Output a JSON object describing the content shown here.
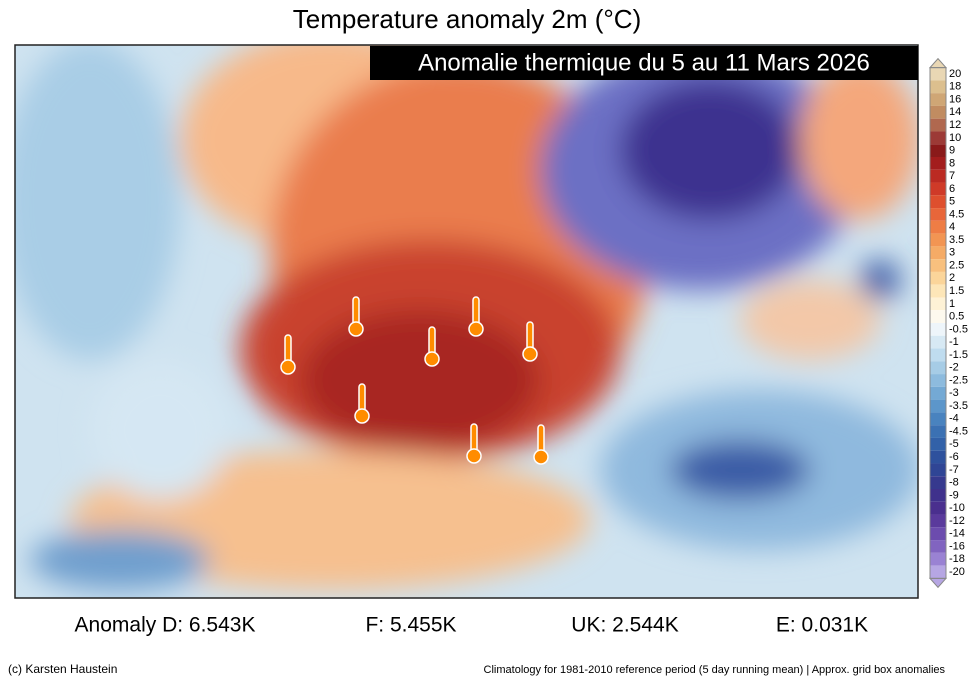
{
  "header": {
    "title": "Temperature anomaly 2m (°C)",
    "banner": "Anomalie thermique du 5 au 11 Mars 2026"
  },
  "colorbar": {
    "labels": [
      "20",
      "18",
      "16",
      "14",
      "12",
      "10",
      "9",
      "8",
      "7",
      "6",
      "5",
      "4.5",
      "4",
      "3.5",
      "3",
      "2.5",
      "2",
      "1.5",
      "1",
      "0.5",
      "-0.5",
      "-1",
      "-1.5",
      "-2",
      "-2.5",
      "-3",
      "-3.5",
      "-4",
      "-4.5",
      "-5",
      "-6",
      "-7",
      "-8",
      "-9",
      "-10",
      "-12",
      "-14",
      "-16",
      "-18",
      "-20"
    ],
    "colors": [
      "#e9d7b4",
      "#dcbf8e",
      "#cfa675",
      "#c18c61",
      "#b0684f",
      "#9c3a36",
      "#8a1a1a",
      "#a31d1d",
      "#bb2a22",
      "#cf3a28",
      "#de4f2e",
      "#e8663a",
      "#ee7d45",
      "#f29553",
      "#f5ab66",
      "#f8c07e",
      "#fbd59a",
      "#fde6b8",
      "#fef2d6",
      "#fdf9ee",
      "#eef5fa",
      "#d7e9f4",
      "#bfdcef",
      "#a6cce6",
      "#8dbbde",
      "#74a9d4",
      "#5c96ca",
      "#4983bf",
      "#3b71b3",
      "#3261a8",
      "#2e519d",
      "#2f4595",
      "#36398e",
      "#3f318c",
      "#4a2f8e",
      "#5a3a9c",
      "#6c4cae",
      "#8164c0",
      "#9a82d3",
      "#b6a6e3"
    ]
  },
  "stats": [
    "Anomaly D: 6.543K",
    "F: 5.455K",
    "UK: 2.544K",
    "E: 0.031K"
  ],
  "footer": {
    "credit": "(c) Karsten Haustein",
    "note": "Climatology for 1981-2010 reference period (5 day running mean) | Approx. grid box anomalies"
  }
}
